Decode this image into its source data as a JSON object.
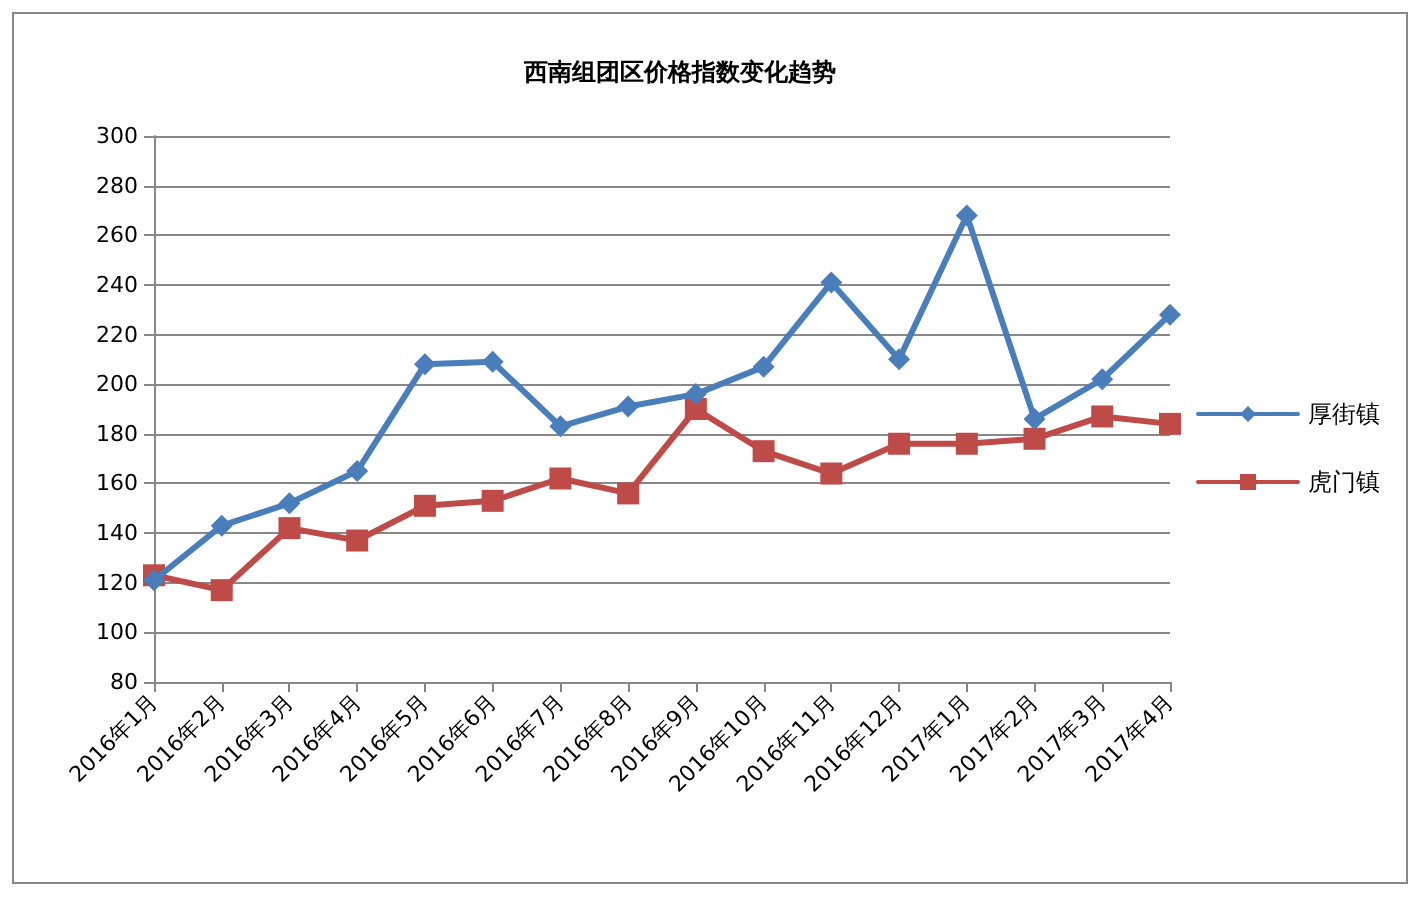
{
  "chart_data": {
    "type": "line",
    "title": "西南组团区价格指数变化趋势",
    "categories": [
      "2016年1月",
      "2016年2月",
      "2016年3月",
      "2016年4月",
      "2016年5月",
      "2016年6月",
      "2016年7月",
      "2016年8月",
      "2016年9月",
      "2016年10月",
      "2016年11月",
      "2016年12月",
      "2017年1月",
      "2017年2月",
      "2017年3月",
      "2017年4月"
    ],
    "series": [
      {
        "name": "厚街镇",
        "color": "#4a7ebb",
        "marker": "diamond",
        "values": [
          121,
          143,
          152,
          165,
          208,
          209,
          183,
          191,
          196,
          207,
          241,
          210,
          268,
          186,
          202,
          228
        ]
      },
      {
        "name": "虎门镇",
        "color": "#be4b48",
        "marker": "square",
        "values": [
          123,
          117,
          142,
          137,
          151,
          153,
          162,
          156,
          190,
          173,
          164,
          176,
          176,
          178,
          187,
          184
        ]
      }
    ],
    "ylim": [
      80,
      300
    ],
    "yticks": [
      80,
      100,
      120,
      140,
      160,
      180,
      200,
      220,
      240,
      260,
      280,
      300
    ],
    "grid": "y",
    "legend": "right",
    "line_style": "solid"
  }
}
